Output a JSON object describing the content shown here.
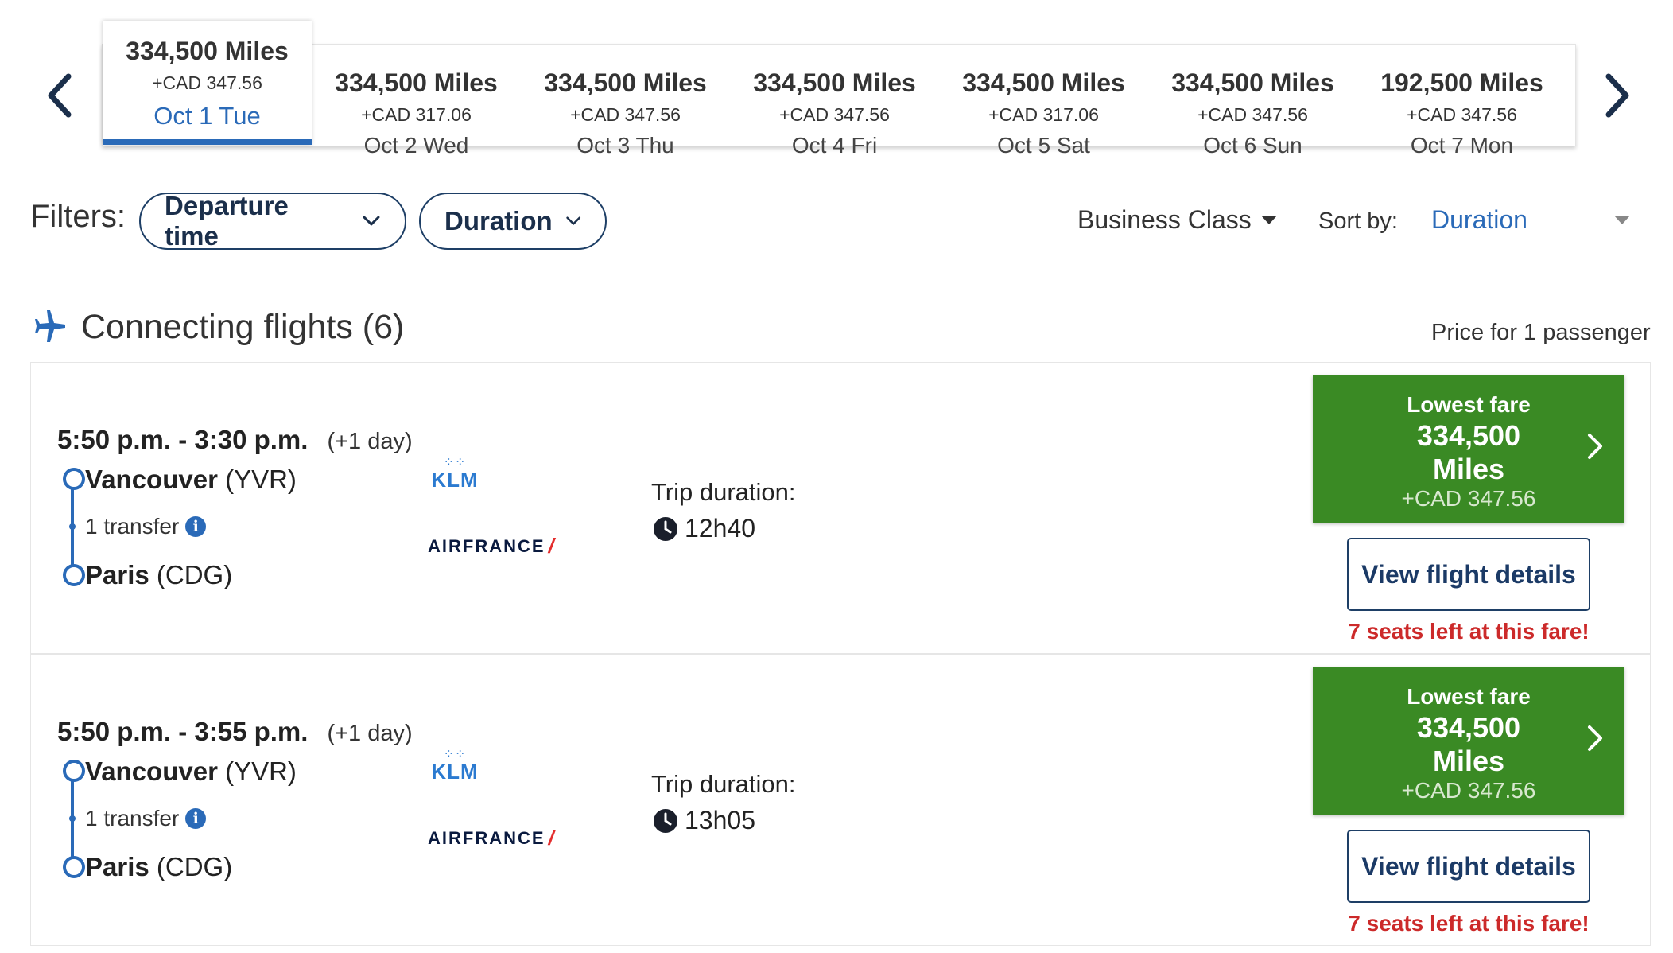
{
  "carousel": {
    "dates": [
      {
        "miles": "334,500 Miles",
        "cad": "+CAD 347.56",
        "day": "Oct 1 Tue",
        "active": true
      },
      {
        "miles": "334,500 Miles",
        "cad": "+CAD 317.06",
        "day": "Oct 2 Wed",
        "active": false
      },
      {
        "miles": "334,500 Miles",
        "cad": "+CAD 347.56",
        "day": "Oct 3 Thu",
        "active": false
      },
      {
        "miles": "334,500 Miles",
        "cad": "+CAD 347.56",
        "day": "Oct 4 Fri",
        "active": false
      },
      {
        "miles": "334,500 Miles",
        "cad": "+CAD 317.06",
        "day": "Oct 5 Sat",
        "active": false
      },
      {
        "miles": "334,500 Miles",
        "cad": "+CAD 347.56",
        "day": "Oct 6 Sun",
        "active": false
      },
      {
        "miles": "192,500 Miles",
        "cad": "+CAD 347.56",
        "day": "Oct 7 Mon",
        "active": false
      }
    ]
  },
  "filters": {
    "label": "Filters:",
    "departure_time": "Departure time",
    "duration": "Duration"
  },
  "cabin": "Business Class",
  "sort": {
    "label": "Sort by:",
    "value": "Duration"
  },
  "section": {
    "title": "Connecting flights (6)",
    "price_note": "Price for 1 passenger"
  },
  "flights": [
    {
      "times": "5:50 p.m. - 3:30 p.m.",
      "day_offset": "(+1 day)",
      "origin_city": "Vancouver",
      "origin_code": "(YVR)",
      "transfer": "1 transfer",
      "dest_city": "Paris",
      "dest_code": "(CDG)",
      "airline1": "KLM",
      "airline2": "AIRFRANCE",
      "trip_label": "Trip duration:",
      "trip_duration": "12h40",
      "fare_label": "Lowest fare",
      "fare_miles_line1": "334,500",
      "fare_miles_line2": "Miles",
      "fare_cad": "+CAD 347.56",
      "details": "View flight details",
      "seats": "7 seats left at this fare!"
    },
    {
      "times": "5:50 p.m. - 3:55 p.m.",
      "day_offset": "(+1 day)",
      "origin_city": "Vancouver",
      "origin_code": "(YVR)",
      "transfer": "1 transfer",
      "dest_city": "Paris",
      "dest_code": "(CDG)",
      "airline1": "KLM",
      "airline2": "AIRFRANCE",
      "trip_label": "Trip duration:",
      "trip_duration": "13h05",
      "fare_label": "Lowest fare",
      "fare_miles_line1": "334,500",
      "fare_miles_line2": "Miles",
      "fare_cad": "+CAD 347.56",
      "details": "View flight details",
      "seats": "7 seats left at this fare!"
    }
  ],
  "colors": {
    "accent": "#2a6ab8",
    "fare_green": "#3a8a24",
    "alert_red": "#cc2a2a",
    "navy": "#1e3f66"
  }
}
